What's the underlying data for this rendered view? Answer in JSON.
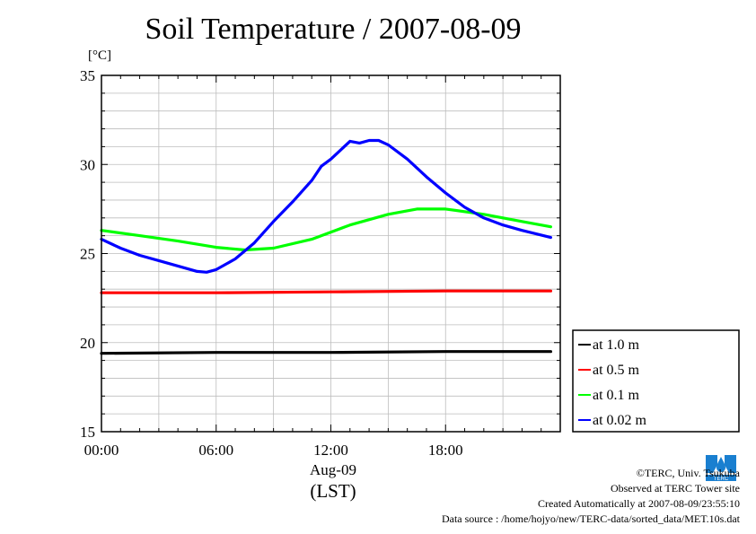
{
  "chart_data": {
    "type": "line",
    "title": "Soil Temperature / 2007-08-09",
    "ylabel": "[°C]",
    "ylim": [
      15,
      35
    ],
    "yticks": [
      "35",
      "30",
      "25",
      "20",
      "15"
    ],
    "xticks": [
      "00:00",
      "06:00",
      "12:00",
      "18:00"
    ],
    "xlim_hours": [
      0,
      24
    ],
    "date_label": "Aug-09",
    "xlabel": "(LST)",
    "grid": true,
    "legend_position": "right",
    "series": [
      {
        "name": "at 1.0 m",
        "color": "#000000",
        "x": [
          0,
          6,
          12,
          18,
          23.5
        ],
        "y": [
          19.4,
          19.45,
          19.45,
          19.5,
          19.5
        ]
      },
      {
        "name": "at 0.5 m",
        "color": "#ff0000",
        "x": [
          0,
          6,
          12,
          18,
          23.5
        ],
        "y": [
          22.8,
          22.8,
          22.85,
          22.9,
          22.9
        ]
      },
      {
        "name": "at 0.1 m",
        "color": "#00ff00",
        "x": [
          0,
          2,
          4,
          6,
          7.5,
          9,
          11,
          13,
          15,
          16.5,
          18,
          20,
          22,
          23.5
        ],
        "y": [
          26.3,
          26.0,
          25.7,
          25.35,
          25.2,
          25.3,
          25.8,
          26.6,
          27.2,
          27.5,
          27.5,
          27.2,
          26.8,
          26.5
        ]
      },
      {
        "name": "at 0.02 m",
        "color": "#0000ff",
        "x": [
          0,
          1,
          2,
          3,
          4,
          5,
          5.5,
          6,
          7,
          8,
          9,
          10,
          11,
          11.5,
          12,
          12.5,
          13,
          13.5,
          14,
          14.5,
          15,
          16,
          17,
          18,
          19,
          20,
          21,
          22,
          23.5
        ],
        "y": [
          25.8,
          25.3,
          24.9,
          24.6,
          24.3,
          24.0,
          23.95,
          24.1,
          24.7,
          25.6,
          26.8,
          27.9,
          29.1,
          29.9,
          30.3,
          30.8,
          31.3,
          31.2,
          31.35,
          31.35,
          31.1,
          30.3,
          29.3,
          28.4,
          27.6,
          27.0,
          26.6,
          26.3,
          25.9
        ]
      }
    ]
  },
  "credits": {
    "copyright": "©TERC, Univ. Tsukuba",
    "site": "Observed at TERC Tower site",
    "created": "Created Automatically at 2007-08-09/23:55:10",
    "source": "Data source : /home/hojyo/new/TERC-data/sorted_data/MET.10s.dat"
  },
  "logo_text": "TERC"
}
